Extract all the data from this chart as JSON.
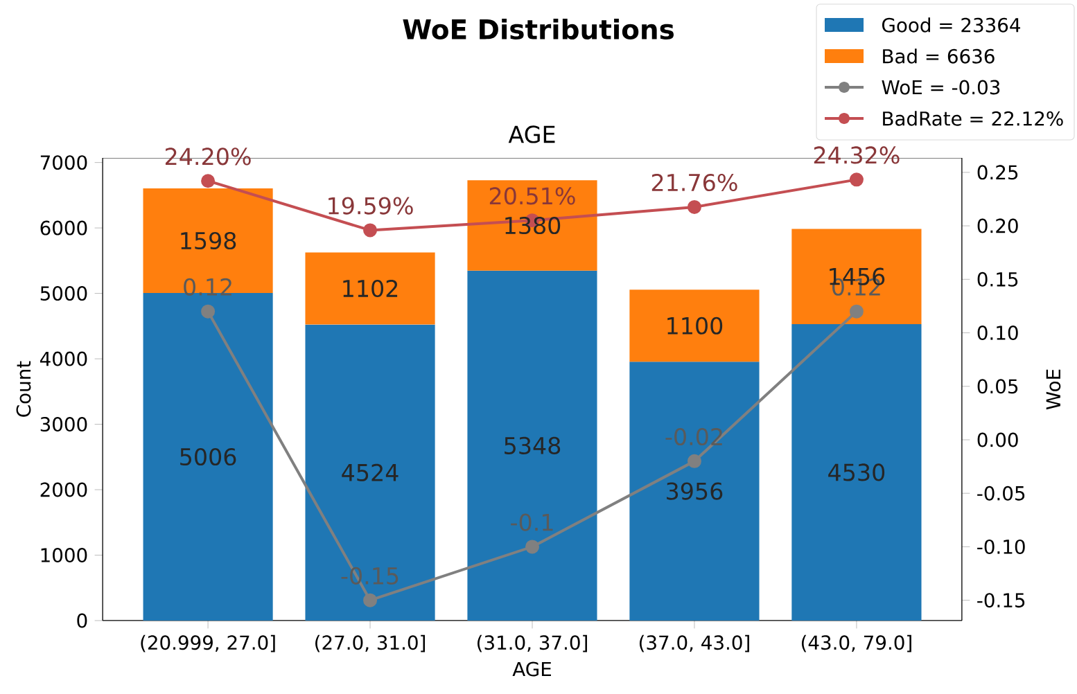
{
  "chart_data": {
    "type": "bar",
    "stacked": true,
    "title": "WoE Distributions",
    "subtitle": "AGE",
    "xlabel": "AGE",
    "ylabel": "Count",
    "y2label": "WoE",
    "categories": [
      "(20.999, 27.0]",
      "(27.0, 31.0]",
      "(31.0, 37.0]",
      "(37.0, 43.0]",
      "(43.0, 79.0]"
    ],
    "series": [
      {
        "name": "Good =  23364",
        "color": "#1f77b4",
        "values": [
          5006,
          4524,
          5348,
          3956,
          4530
        ]
      },
      {
        "name": "Bad =  6636",
        "color": "#ff7f0e",
        "values": [
          1598,
          1102,
          1380,
          1100,
          1456
        ]
      },
      {
        "name": "WoE = -0.03",
        "type": "line",
        "axis": "y2",
        "color": "#808080",
        "values": [
          0.12,
          -0.15,
          -0.1,
          -0.02,
          0.12
        ]
      },
      {
        "name": "BadRate = 22.12%",
        "type": "line",
        "axis": "y2",
        "color": "#c44e52",
        "values": [
          0.242,
          0.1959,
          0.2051,
          0.2176,
          0.2432
        ],
        "value_labels": [
          "24.20%",
          "19.59%",
          "20.51%",
          "21.76%",
          "24.32%"
        ]
      }
    ],
    "ylim": [
      0,
      7070
    ],
    "yticks": [
      0,
      1000,
      2000,
      3000,
      4000,
      5000,
      6000,
      7000
    ],
    "y2lim": [
      -0.169,
      0.2635
    ],
    "y2ticks": [
      {
        "value": -0.15,
        "label": "-0.15"
      },
      {
        "value": -0.1,
        "label": "-0.10"
      },
      {
        "value": -0.05,
        "label": "-0.05"
      },
      {
        "value": 0,
        "label": "0.00"
      },
      {
        "value": 0.05,
        "label": "0.05"
      },
      {
        "value": 0.1,
        "label": "0.10"
      },
      {
        "value": 0.15,
        "label": "0.15"
      },
      {
        "value": 0.2,
        "label": "0.20"
      },
      {
        "value": 0.25,
        "label": "0.25"
      }
    ],
    "data_labels": true,
    "legend": "top right",
    "marker": "circle"
  }
}
